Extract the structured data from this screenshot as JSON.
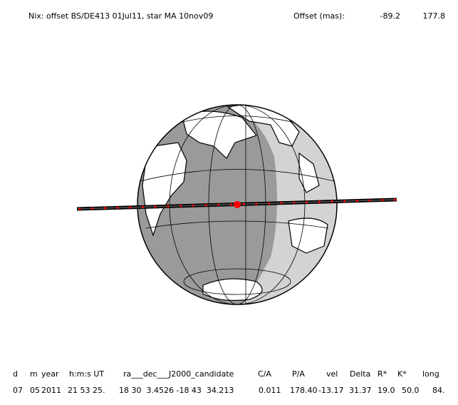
{
  "header": {
    "title": "Nix: offset BS/DE413 01Jul11, star MA 10nov09",
    "offset_label": "Offset (mas):",
    "offset_values": [
      "-89.2",
      "177.8"
    ]
  },
  "table": {
    "columns": [
      "d",
      "m",
      "year",
      "h:m:s UT",
      "ra___dec___J2000_candidate",
      "C/A",
      "P/A",
      "vel",
      "Delta",
      "R*",
      "K*",
      "long"
    ],
    "rows": [
      [
        "07",
        "05",
        "2011",
        "21 53 25.",
        "18 30  3.4526 -18 43  34.213",
        "0.011",
        "178.40",
        "-13.17",
        "31.37",
        "19.0",
        "50.0",
        "84."
      ]
    ]
  }
}
